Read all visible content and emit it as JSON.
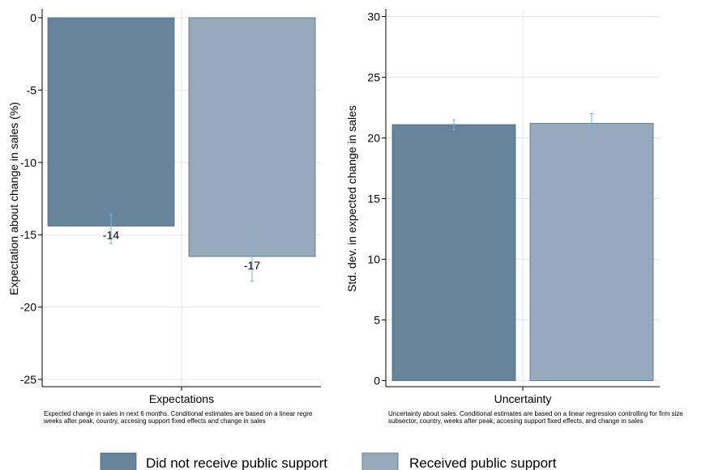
{
  "chart_data": [
    {
      "type": "bar",
      "categories": [
        "Expectations"
      ],
      "series": [
        {
          "name": "Did not receive public support",
          "values": [
            -14.4
          ],
          "error_low": [
            -15.6
          ],
          "error_high": [
            -13.6
          ],
          "label": "-14",
          "color": "#66849a"
        },
        {
          "name": "Received public support",
          "values": [
            -16.5
          ],
          "error_low": [
            -18.2
          ],
          "error_high": [
            -14.8
          ],
          "label": "-17",
          "color": "#97aabb"
        }
      ],
      "xlabel": "Expectations",
      "ylabel": "Expectation about change in sales (%)",
      "ylim": [
        -25.5,
        0.5
      ],
      "yticks": [
        0,
        -5,
        -10,
        -15,
        -20,
        -25
      ],
      "ytick_labels": [
        "0",
        "-5",
        "-10",
        "-15",
        "-20",
        "-25"
      ],
      "grid": true,
      "note_lines": [
        "Expected change in sales in next 6 months. Conditional estimates are based on a linear regre",
        "weeks after peak, country, accesing support fixed effects and change in sales"
      ]
    },
    {
      "type": "bar",
      "categories": [
        "Uncertainty"
      ],
      "series": [
        {
          "name": "Did not receive public support",
          "values": [
            21.1
          ],
          "error_low": [
            20.7
          ],
          "error_high": [
            21.5
          ],
          "color": "#66849a"
        },
        {
          "name": "Received public support",
          "values": [
            21.2
          ],
          "error_low": [
            20.4
          ],
          "error_high": [
            22.0
          ],
          "color": "#97aabb"
        }
      ],
      "xlabel": "Uncertainty",
      "ylabel": "Std. dev. in expected change in sales",
      "ylim": [
        -0.5,
        30.5
      ],
      "yticks": [
        0,
        5,
        10,
        15,
        20,
        25,
        30
      ],
      "ytick_labels": [
        "0",
        "5",
        "10",
        "15",
        "20",
        "25",
        "30"
      ],
      "grid": true,
      "note_lines": [
        "Uncertainty about sales. Conditional estimates are based on a linear regression controlling for firm size",
        "subsector, country, weeks after peak, accesing support fixed effects, and change in sales"
      ]
    }
  ],
  "legend": {
    "placement": "bottom",
    "items": [
      {
        "label": "Did not receive public support",
        "color": "#66849a"
      },
      {
        "label": "Received public support",
        "color": "#97aabb"
      }
    ]
  }
}
